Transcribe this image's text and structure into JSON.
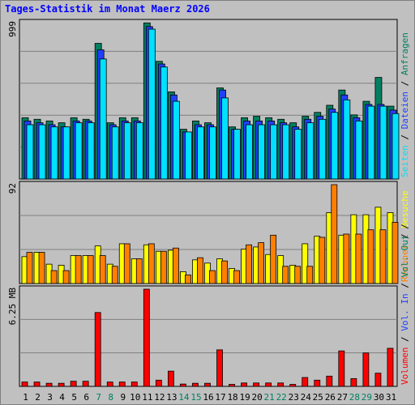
{
  "title": "Tages-Statistik im Monat Maerz 2026",
  "chart_data": [
    {
      "type": "bar",
      "panel": "hits",
      "ytick_label": "999",
      "ymax": 999,
      "scale": "log",
      "categories": [
        "1",
        "2",
        "3",
        "4",
        "5",
        "6",
        "7",
        "8",
        "9",
        "10",
        "11",
        "12",
        "13",
        "14",
        "15",
        "16",
        "17",
        "18",
        "19",
        "20",
        "21",
        "22",
        "23",
        "24",
        "25",
        "26",
        "27",
        "28",
        "29",
        "30",
        "31"
      ],
      "weekend_days": [
        "7",
        "8",
        "14",
        "15",
        "21",
        "22",
        "28",
        "29"
      ],
      "series": [
        {
          "name": "Anfragen",
          "color": "#008060",
          "values": [
            14,
            13,
            12,
            11,
            14,
            13,
            400,
            11,
            14,
            14,
            990,
            180,
            46,
            8,
            12,
            11,
            55,
            9,
            14,
            15,
            14,
            13,
            11,
            15,
            18,
            25,
            50,
            16,
            30,
            88,
            24
          ]
        },
        {
          "name": "Dateien",
          "color": "#2040ff",
          "values": [
            12,
            11,
            10,
            9,
            12,
            12,
            300,
            10,
            12,
            12,
            840,
            160,
            40,
            7,
            10,
            10,
            50,
            8,
            12,
            12,
            12,
            11,
            9,
            13,
            15,
            21,
            40,
            14,
            26,
            26,
            20
          ]
        },
        {
          "name": "Seiten",
          "color": "#00e0ff",
          "values": [
            10,
            10,
            9,
            9,
            11,
            11,
            200,
            9,
            11,
            11,
            750,
            140,
            30,
            7,
            9,
            9,
            35,
            8,
            10,
            10,
            10,
            10,
            8,
            11,
            13,
            18,
            32,
            12,
            24,
            24,
            17
          ]
        }
      ],
      "axis_label_parts": [
        {
          "text": "Seiten",
          "color": "#00e0ff"
        },
        {
          "text": " / ",
          "color": "#000000"
        },
        {
          "text": "Dateien",
          "color": "#2040ff"
        },
        {
          "text": " / ",
          "color": "#000000"
        },
        {
          "text": "Anfragen",
          "color": "#008060"
        }
      ]
    },
    {
      "type": "bar",
      "panel": "visits",
      "ytick_label": "92",
      "ymax": 92,
      "categories": [
        "1",
        "2",
        "3",
        "4",
        "5",
        "6",
        "7",
        "8",
        "9",
        "10",
        "11",
        "12",
        "13",
        "14",
        "15",
        "16",
        "17",
        "18",
        "19",
        "20",
        "21",
        "22",
        "23",
        "24",
        "25",
        "26",
        "27",
        "28",
        "29",
        "30",
        "31"
      ],
      "series": [
        {
          "name": "Besuche",
          "color": "#ffff00",
          "values": [
            25,
            29,
            18,
            17,
            26,
            26,
            35,
            18,
            37,
            23,
            36,
            30,
            31,
            11,
            22,
            19,
            23,
            14,
            32,
            34,
            27,
            26,
            17,
            37,
            44,
            66,
            45,
            64,
            64,
            71,
            66
          ]
        },
        {
          "name": "Rechner",
          "color": "#ff8000",
          "values": [
            29,
            29,
            12,
            12,
            26,
            26,
            26,
            16,
            37,
            23,
            37,
            30,
            33,
            8,
            24,
            12,
            21,
            12,
            36,
            38,
            45,
            16,
            16,
            16,
            43,
            92,
            46,
            46,
            50,
            50,
            57
          ]
        }
      ],
      "axis_label_parts": [
        {
          "text": "Rechner",
          "color": "#ff8000"
        },
        {
          "text": " / ",
          "color": "#000000"
        },
        {
          "text": "Besuche",
          "color": "#ffff00"
        }
      ]
    },
    {
      "type": "bar",
      "panel": "volume",
      "ytick_label": "6.25 MB",
      "ymax": 6.25,
      "unit": "MB",
      "categories": [
        "1",
        "2",
        "3",
        "4",
        "5",
        "6",
        "7",
        "8",
        "9",
        "10",
        "11",
        "12",
        "13",
        "14",
        "15",
        "16",
        "17",
        "18",
        "19",
        "20",
        "21",
        "22",
        "23",
        "24",
        "25",
        "26",
        "27",
        "28",
        "29",
        "30",
        "31"
      ],
      "series": [
        {
          "name": "Volumen",
          "color": "#ff0000",
          "values": [
            0.28,
            0.28,
            0.2,
            0.2,
            0.33,
            0.33,
            4.75,
            0.28,
            0.28,
            0.28,
            6.25,
            0.4,
            0.98,
            0.15,
            0.2,
            0.2,
            2.35,
            0.13,
            0.22,
            0.22,
            0.22,
            0.22,
            0.13,
            0.57,
            0.4,
            0.66,
            2.28,
            0.5,
            2.15,
            0.85,
            2.45
          ]
        }
      ],
      "axis_label_parts": [
        {
          "text": "Volumen",
          "color": "#ff0000"
        },
        {
          "text": " / ",
          "color": "#000000"
        },
        {
          "text": "Vol. In",
          "color": "#2040ff"
        },
        {
          "text": " / ",
          "color": "#000000"
        },
        {
          "text": "Vol. Out",
          "color": "#008060"
        },
        {
          "text": " / ",
          "color": "#000000"
        }
      ]
    }
  ]
}
